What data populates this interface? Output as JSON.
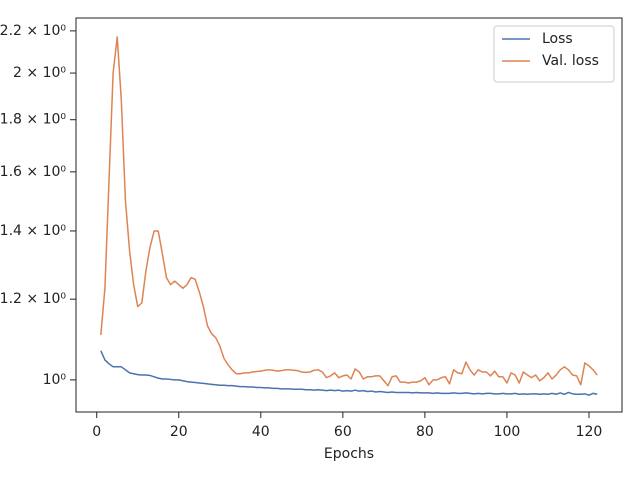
{
  "chart_data": {
    "type": "line",
    "xlabel": "Epochs",
    "x": [
      1,
      2,
      3,
      4,
      5,
      6,
      7,
      8,
      9,
      10,
      11,
      12,
      13,
      14,
      15,
      16,
      17,
      18,
      19,
      20,
      21,
      22,
      23,
      24,
      25,
      26,
      27,
      28,
      29,
      30,
      31,
      32,
      33,
      34,
      35,
      36,
      37,
      38,
      39,
      40,
      41,
      42,
      43,
      44,
      45,
      46,
      47,
      48,
      49,
      50,
      51,
      52,
      53,
      54,
      55,
      56,
      57,
      58,
      59,
      60,
      61,
      62,
      63,
      64,
      65,
      66,
      67,
      68,
      69,
      70,
      71,
      72,
      73,
      74,
      75,
      76,
      77,
      78,
      79,
      80,
      81,
      82,
      83,
      84,
      85,
      86,
      87,
      88,
      89,
      90,
      91,
      92,
      93,
      94,
      95,
      96,
      97,
      98,
      99,
      100,
      101,
      102,
      103,
      104,
      105,
      106,
      107,
      108,
      109,
      110,
      111,
      112,
      113,
      114,
      115,
      116,
      117,
      118,
      119,
      120,
      121,
      122
    ],
    "series": [
      {
        "name": "Loss",
        "color": "#4c72b0",
        "values": [
          1.068,
          1.046,
          1.037,
          1.03,
          1.03,
          1.03,
          1.023,
          1.016,
          1.014,
          1.012,
          1.011,
          1.011,
          1.01,
          1.007,
          1.004,
          1.002,
          1.002,
          1.001,
          1.0,
          1.0,
          0.998,
          0.996,
          0.995,
          0.994,
          0.993,
          0.992,
          0.991,
          0.99,
          0.989,
          0.988,
          0.988,
          0.987,
          0.987,
          0.986,
          0.985,
          0.985,
          0.984,
          0.984,
          0.983,
          0.983,
          0.982,
          0.982,
          0.981,
          0.981,
          0.98,
          0.98,
          0.98,
          0.979,
          0.979,
          0.979,
          0.978,
          0.978,
          0.977,
          0.978,
          0.977,
          0.976,
          0.977,
          0.976,
          0.977,
          0.975,
          0.976,
          0.975,
          0.977,
          0.975,
          0.976,
          0.974,
          0.975,
          0.973,
          0.974,
          0.973,
          0.972,
          0.973,
          0.972,
          0.972,
          0.972,
          0.972,
          0.971,
          0.972,
          0.971,
          0.971,
          0.971,
          0.97,
          0.971,
          0.97,
          0.97,
          0.97,
          0.971,
          0.97,
          0.97,
          0.971,
          0.97,
          0.969,
          0.97,
          0.969,
          0.97,
          0.97,
          0.969,
          0.969,
          0.97,
          0.969,
          0.969,
          0.97,
          0.968,
          0.969,
          0.968,
          0.969,
          0.969,
          0.968,
          0.969,
          0.968,
          0.97,
          0.968,
          0.971,
          0.968,
          0.972,
          0.969,
          0.968,
          0.968,
          0.969,
          0.966,
          0.97,
          0.968
        ]
      },
      {
        "name": "Val. loss",
        "color": "#dd8452",
        "values": [
          1.107,
          1.23,
          1.57,
          2.0,
          2.17,
          1.88,
          1.5,
          1.34,
          1.24,
          1.18,
          1.19,
          1.28,
          1.35,
          1.4,
          1.4,
          1.33,
          1.26,
          1.24,
          1.25,
          1.24,
          1.23,
          1.24,
          1.26,
          1.255,
          1.22,
          1.18,
          1.13,
          1.11,
          1.1,
          1.08,
          1.05,
          1.035,
          1.023,
          1.014,
          1.014,
          1.016,
          1.016,
          1.018,
          1.019,
          1.02,
          1.022,
          1.023,
          1.022,
          1.02,
          1.021,
          1.023,
          1.023,
          1.022,
          1.021,
          1.018,
          1.017,
          1.018,
          1.022,
          1.023,
          1.018,
          1.005,
          1.009,
          1.016,
          1.005,
          1.009,
          1.011,
          1.002,
          1.025,
          1.018,
          1.002,
          1.007,
          1.007,
          1.009,
          1.009,
          0.998,
          0.987,
          1.007,
          1.009,
          0.995,
          0.995,
          0.993,
          0.995,
          0.995,
          0.998,
          1.005,
          0.989,
          1.0,
          1.0,
          1.005,
          1.007,
          0.991,
          1.023,
          1.016,
          1.014,
          1.041,
          1.023,
          1.011,
          1.023,
          1.018,
          1.018,
          1.009,
          1.02,
          1.007,
          1.007,
          0.993,
          1.016,
          1.011,
          0.993,
          1.018,
          1.011,
          1.005,
          1.011,
          0.998,
          1.005,
          1.016,
          1.002,
          1.011,
          1.023,
          1.03,
          1.023,
          1.011,
          1.009,
          0.989,
          1.039,
          1.032,
          1.023,
          1.011
        ]
      }
    ],
    "xlim": [
      -5.05,
      128.05
    ],
    "ylim": [
      0.93,
      2.265
    ],
    "log_y": true,
    "xticks": [
      0,
      20,
      40,
      60,
      80,
      100,
      120
    ],
    "yticks": [
      {
        "value": 1,
        "label": "10⁰"
      },
      {
        "value": 1.2,
        "label": "1.2 × 10⁰"
      },
      {
        "value": 1.4,
        "label": "1.4 × 10⁰"
      },
      {
        "value": 1.6,
        "label": "1.6 × 10⁰"
      },
      {
        "value": 1.8,
        "label": "1.8 × 10⁰"
      },
      {
        "value": 2,
        "label": "2 × 10⁰"
      },
      {
        "value": 2.2,
        "label": "2.2 × 10⁰"
      }
    ],
    "legend": "upper right"
  }
}
